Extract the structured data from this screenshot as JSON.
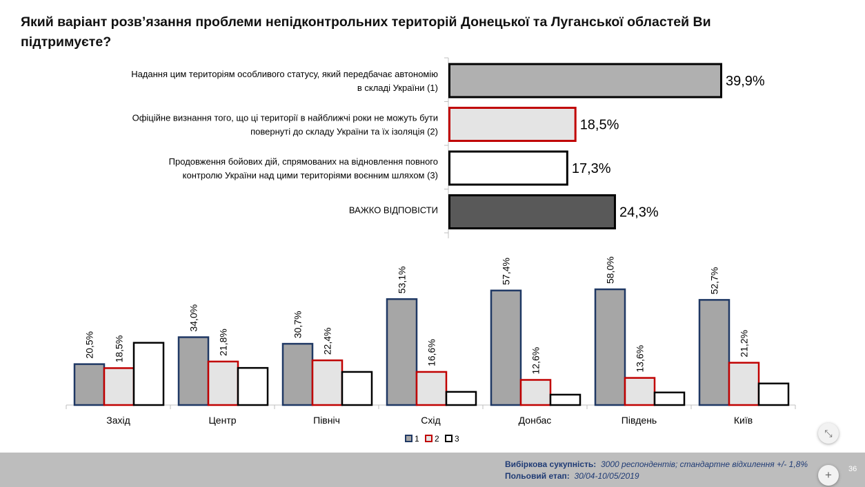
{
  "title": "Який варіант розв’язання проблеми непідконтрольних територій Донецької та Луганської областей Ви підтримуєте?",
  "chart_data": [
    {
      "type": "bar",
      "orientation": "horizontal",
      "categories": [
        [
          "Надання цим територіям особливого статусу, який передбачає автономію",
          "в складі України (1)"
        ],
        [
          "Офіційне визнання того, що ці території в найближчі роки не можуть бути",
          "повернуті до складу України та їх ізоляція (2)"
        ],
        [
          "Продовження бойових дій, спрямованих на відновлення повного",
          "контролю України над цими територіями воєнним шляхом (3)"
        ],
        [
          "ВАЖКО ВІДПОВІСТИ"
        ]
      ],
      "values": [
        39.9,
        18.5,
        17.3,
        24.3
      ],
      "value_labels": [
        "39,9%",
        "18,5%",
        "17,3%",
        "24,3%"
      ],
      "colors": [
        {
          "fill": "#b0b0b0",
          "stroke": "#000000"
        },
        {
          "fill": "#e4e4e4",
          "stroke": "#c00000"
        },
        {
          "fill": "#ffffff",
          "stroke": "#000000"
        },
        {
          "fill": "#595959",
          "stroke": "#000000"
        }
      ],
      "xlim": [
        0,
        40
      ]
    },
    {
      "type": "bar",
      "orientation": "vertical",
      "categories": [
        "Захід",
        "Центр",
        "Північ",
        "Схід",
        "Донбас",
        "Південь",
        "Київ"
      ],
      "series": [
        {
          "name": "1",
          "values": [
            20.5,
            34.0,
            30.7,
            53.1,
            57.4,
            58.0,
            52.7
          ],
          "labels": [
            "20,5%",
            "34,0%",
            "30,7%",
            "53,1%",
            "57,4%",
            "58,0%",
            "52,7%"
          ],
          "fill": "#a6a6a6",
          "stroke": "#1f3864"
        },
        {
          "name": "2",
          "values": [
            18.5,
            21.8,
            22.4,
            16.6,
            12.6,
            13.6,
            21.2
          ],
          "labels": [
            "18,5%",
            "21,8%",
            "22,4%",
            "16,6%",
            "12,6%",
            "13,6%",
            "21,2%"
          ],
          "fill": "#e4e4e4",
          "stroke": "#c00000"
        },
        {
          "name": "3",
          "values": [
            31.2,
            18.6,
            16.6,
            6.6,
            5.2,
            6.3,
            10.8
          ],
          "labels": [
            "",
            "",
            "",
            "",
            "",
            "",
            ""
          ],
          "fill": "#ffffff",
          "stroke": "#000000"
        }
      ],
      "legend": "bottom",
      "ylim": [
        0,
        60
      ]
    }
  ],
  "footer": {
    "line1_label": "Вибіркова сукупність:",
    "line1_text": "3000 респондентів; стандартне відхилення +/- 1,8%",
    "line2_label": "Польовий етап:",
    "line2_text": "30/04-10/05/2019"
  },
  "page_number": "36",
  "buttons": {
    "shrink_icon": "compress-icon",
    "plus_icon": "plus-icon",
    "shrink_glyph": "⤡",
    "plus_glyph": "+"
  }
}
